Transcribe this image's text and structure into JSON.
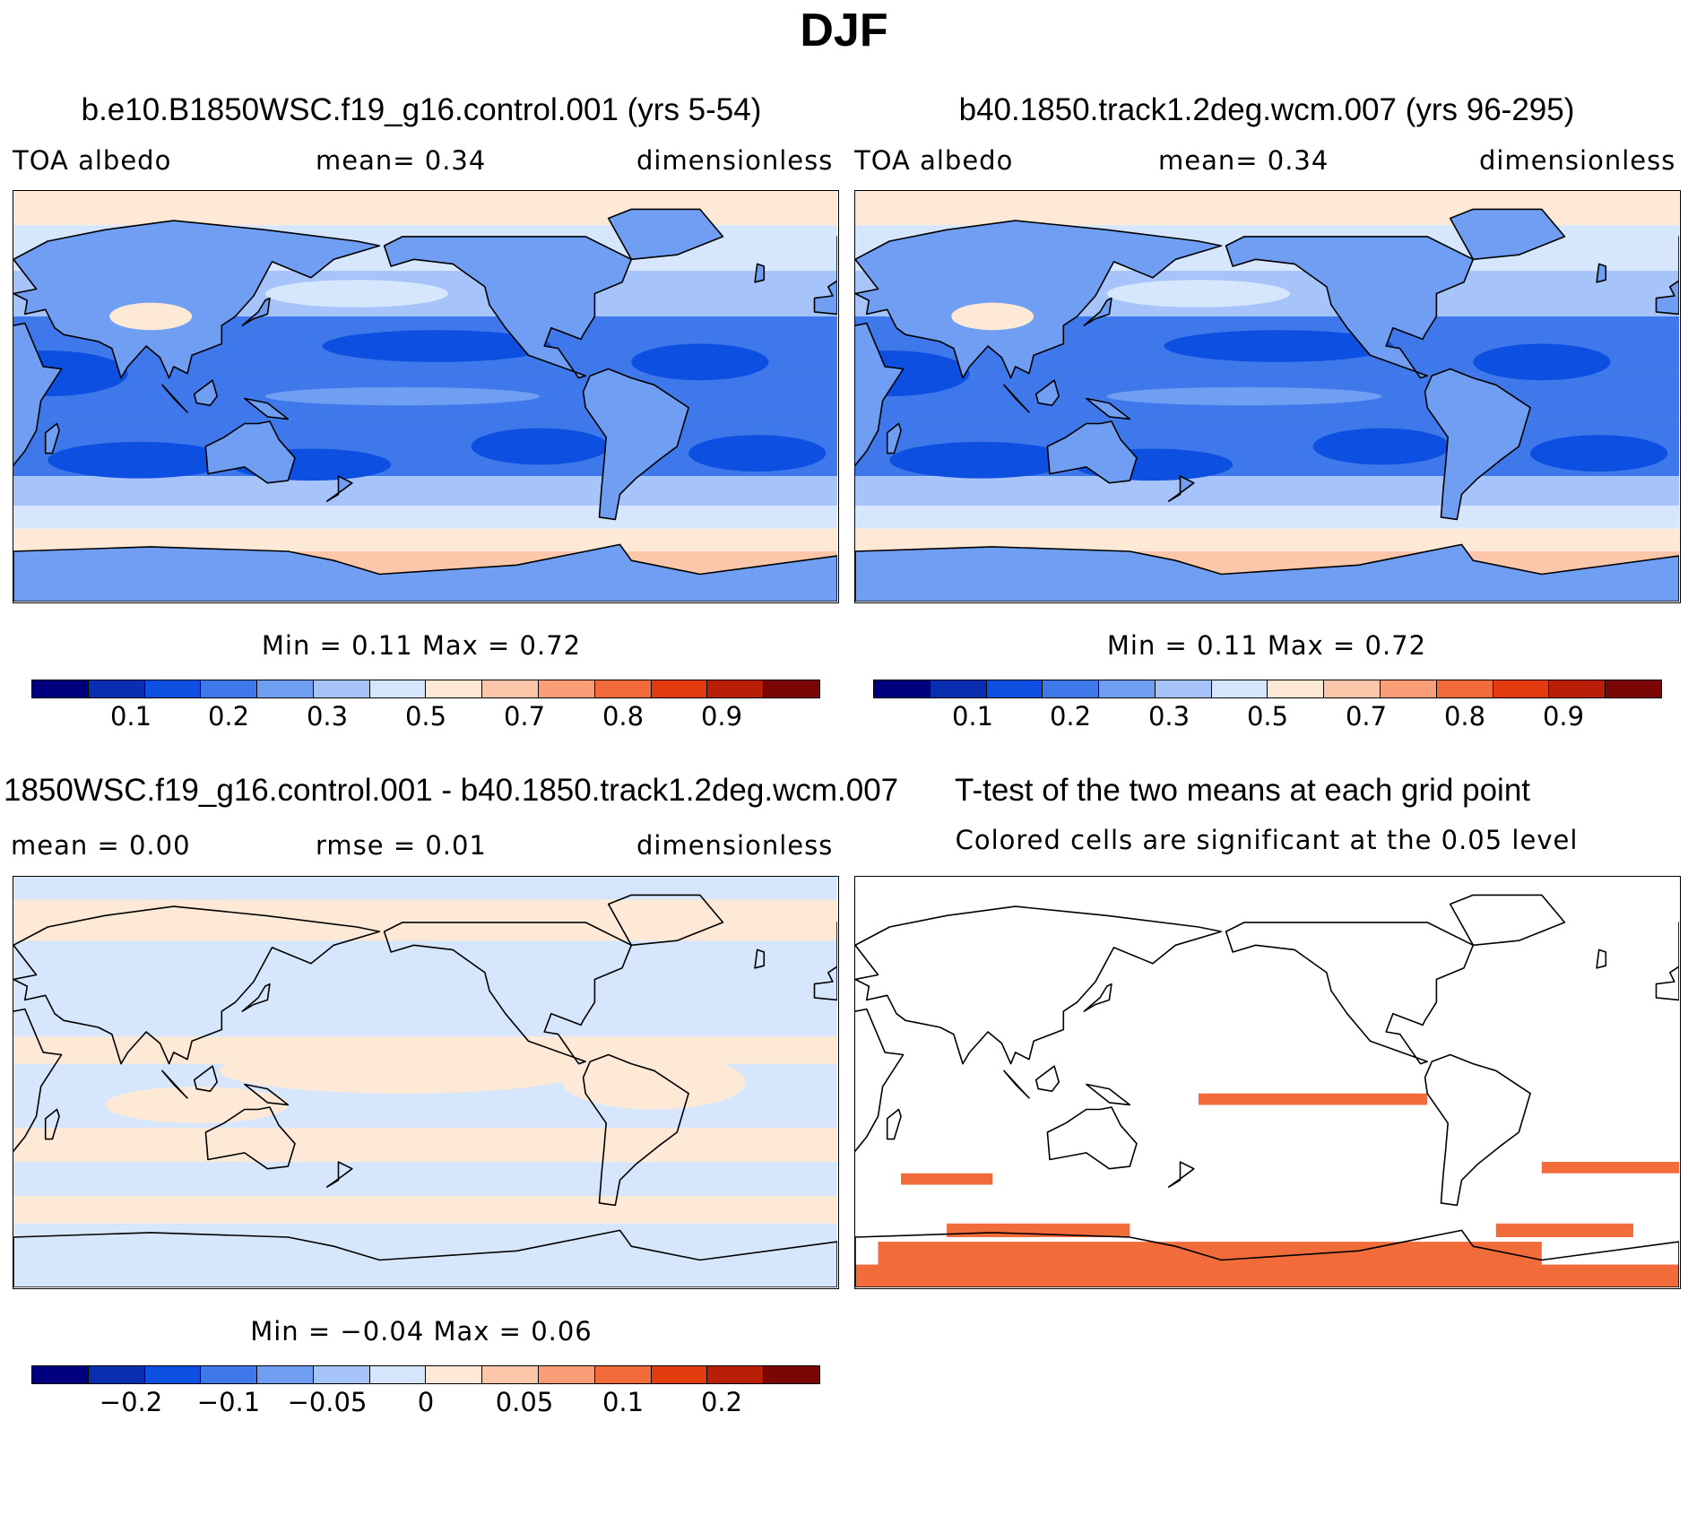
{
  "figure_title": "DJF",
  "palettes": {
    "abs": [
      "#00007f",
      "#0a2eb0",
      "#0d4fe0",
      "#3f78ea",
      "#6f9ef2",
      "#a7c4fa",
      "#d6e7fd",
      "#fde9d6",
      "#fcc6aa",
      "#f99e76",
      "#f26b3a",
      "#e23b0e",
      "#b81f06",
      "#7c0505"
    ],
    "diff": [
      "#00007f",
      "#0a2eb0",
      "#0d4fe0",
      "#3f78ea",
      "#6f9ef2",
      "#a7c4fa",
      "#d6e7fd",
      "#fde9d6",
      "#fcc6aa",
      "#f99e76",
      "#f26b3a",
      "#e23b0e",
      "#b81f06",
      "#7c0505"
    ],
    "sig": "#f26b3a"
  },
  "panels": [
    {
      "title": "b.e10.B1850WSC.f19_g16.control.001 (yrs 5-54)",
      "left_text": "TOA  albedo",
      "mid_text": "mean=     0.34",
      "right_text": "dimensionless",
      "minmax_text": "Min  =     0.11  Max  =     0.72"
    },
    {
      "title": "b40.1850.track1.2deg.wcm.007 (yrs 96-295)",
      "left_text": "TOA  albedo",
      "mid_text": "mean=     0.34",
      "right_text": "dimensionless",
      "minmax_text": "Min  =     0.11  Max  =     0.72"
    },
    {
      "title": "1850WSC.f19_g16.control.001 - b40.1850.track1.2deg.wcm.007",
      "left_text": "mean  =     0.00",
      "mid_text": "rmse  =     0.01",
      "right_text": "dimensionless",
      "minmax_text": "Min  =   −0.04  Max  =     0.06"
    },
    {
      "title": "T-test of the two means at each grid point",
      "subtitle": "Colored cells are significant at the 0.05 level"
    }
  ],
  "chart_data": [
    {
      "type": "heatmap",
      "title": "b.e10.B1850WSC.f19_g16.control.001 (yrs 5-54)",
      "variable": "TOA albedo",
      "units": "dimensionless",
      "mean": 0.34,
      "min": 0.11,
      "max": 0.72,
      "colorbar_ticks": [
        "0.1",
        "0.2",
        "0.3",
        "0.5",
        "0.7",
        "0.8",
        "0.9"
      ]
    },
    {
      "type": "heatmap",
      "title": "b40.1850.track1.2deg.wcm.007 (yrs 96-295)",
      "variable": "TOA albedo",
      "units": "dimensionless",
      "mean": 0.34,
      "min": 0.11,
      "max": 0.72,
      "colorbar_ticks": [
        "0.1",
        "0.2",
        "0.3",
        "0.5",
        "0.7",
        "0.8",
        "0.9"
      ]
    },
    {
      "type": "heatmap",
      "title": "1850WSC.f19_g16.control.001 - b40.1850.track1.2deg.wcm.007",
      "units": "dimensionless",
      "mean": 0.0,
      "rmse": 0.01,
      "min": -0.04,
      "max": 0.06,
      "colorbar_ticks": [
        "−0.2",
        "−0.1",
        "−0.05",
        "0",
        "0.05",
        "0.1",
        "0.2"
      ]
    },
    {
      "type": "heatmap",
      "title": "T-test of the two means at each grid point",
      "subtitle": "Colored cells are significant at the 0.05 level"
    }
  ]
}
